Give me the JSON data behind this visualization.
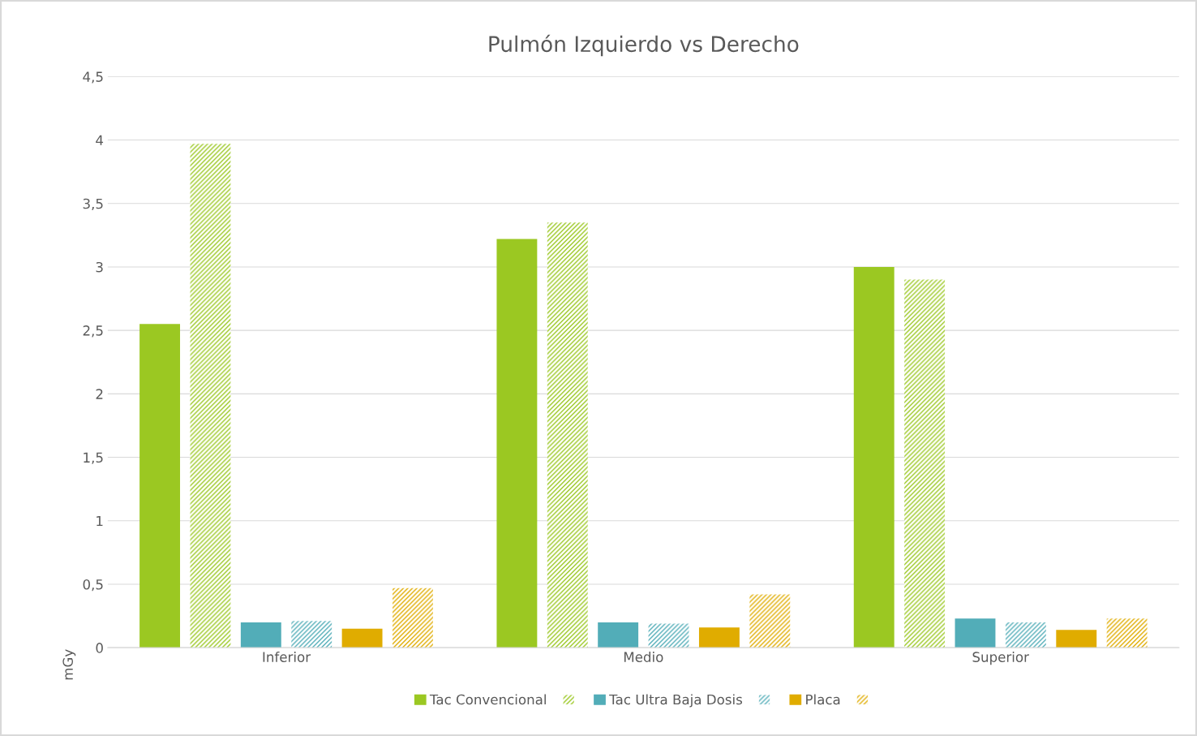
{
  "chart_data": {
    "type": "bar",
    "title": "Pulmón Izquierdo vs Derecho",
    "ylabel": "mGy",
    "categories": [
      "Inferior",
      "Medio",
      "Superior"
    ],
    "series": [
      {
        "name": "Tac Convencional",
        "color": "#9bc822",
        "values": [
          2.55,
          3.22,
          3.0
        ]
      },
      {
        "name": null,
        "color": "#9bc822",
        "values": [
          3.97,
          3.35,
          2.9
        ]
      },
      {
        "name": "Tac Ultra Baja Dosis",
        "color": "#52adb8",
        "values": [
          0.2,
          0.2,
          0.23
        ]
      },
      {
        "name": null,
        "color": "#52adb8",
        "values": [
          0.21,
          0.19,
          0.2
        ]
      },
      {
        "name": "Placa",
        "color": "#e0ac00",
        "values": [
          0.15,
          0.16,
          0.14
        ]
      },
      {
        "name": null,
        "color": "#e0ac00",
        "values": [
          0.47,
          0.42,
          0.23
        ]
      }
    ],
    "ylim": [
      0,
      4.5
    ],
    "yticks": [
      {
        "value": 0,
        "label": "0"
      },
      {
        "value": 0.5,
        "label": "0,5"
      },
      {
        "value": 1,
        "label": "1"
      },
      {
        "value": 1.5,
        "label": "1,5"
      },
      {
        "value": 2,
        "label": "2"
      },
      {
        "value": 2.5,
        "label": "2,5"
      },
      {
        "value": 3,
        "label": "3"
      },
      {
        "value": 3.5,
        "label": "3,5"
      },
      {
        "value": 4,
        "label": "4"
      },
      {
        "value": 4.5,
        "label": "4,5"
      }
    ],
    "grid": "y",
    "legend": "bottom"
  }
}
